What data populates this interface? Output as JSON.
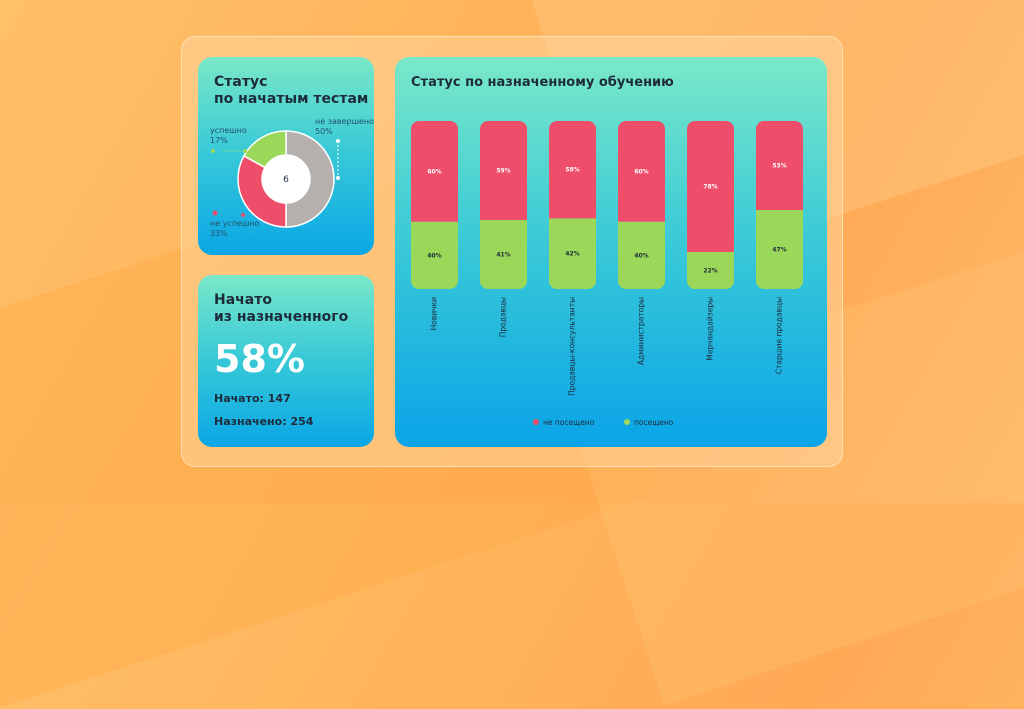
{
  "colors": {
    "not_done": "#ee4e6a",
    "done": "#9bd85a",
    "pending": "#b5b0ad"
  },
  "card_tests": {
    "title_line1": "Статус",
    "title_line2": "по начатым тестам",
    "center_value": "6",
    "label_success": "успешно",
    "value_success": "17%",
    "label_fail": "не успешно",
    "value_fail": "33%",
    "label_pending": "не завершено",
    "value_pending": "50%"
  },
  "card_started": {
    "title_line1": "Начато",
    "title_line2": "из назначенного",
    "percent": "58%",
    "started": "Начато: 147",
    "assigned": "Назначено: 254"
  },
  "card_training": {
    "title": "Статус по назначенному обучению",
    "legend_not_attended": "не посещено",
    "legend_attended": "посещено"
  },
  "chart_data": [
    {
      "type": "pie",
      "labels": [
        "успешно",
        "не успешно",
        "не завершено"
      ],
      "values": [
        17,
        33,
        50
      ],
      "center_label": "6"
    },
    {
      "type": "bar",
      "stacked": true,
      "title": "Статус по назначенному обучению",
      "categories": [
        "Новички",
        "Продавцы",
        "Продавцы-консультанты",
        "Администраторы",
        "Мерчандайзеры",
        "Старшие продавцы"
      ],
      "series": [
        {
          "name": "посещено",
          "values": [
            40,
            41,
            42,
            40,
            22,
            47
          ],
          "labels": [
            "40%",
            "41%",
            "42%",
            "40%",
            "22%",
            "47%"
          ]
        },
        {
          "name": "не посещено",
          "values": [
            60,
            59,
            58,
            60,
            78,
            53
          ],
          "labels": [
            "60%",
            "59%",
            "58%",
            "60%",
            "78%",
            "53%"
          ]
        }
      ],
      "ylim": [
        0,
        100
      ],
      "legend": "bottom"
    }
  ]
}
